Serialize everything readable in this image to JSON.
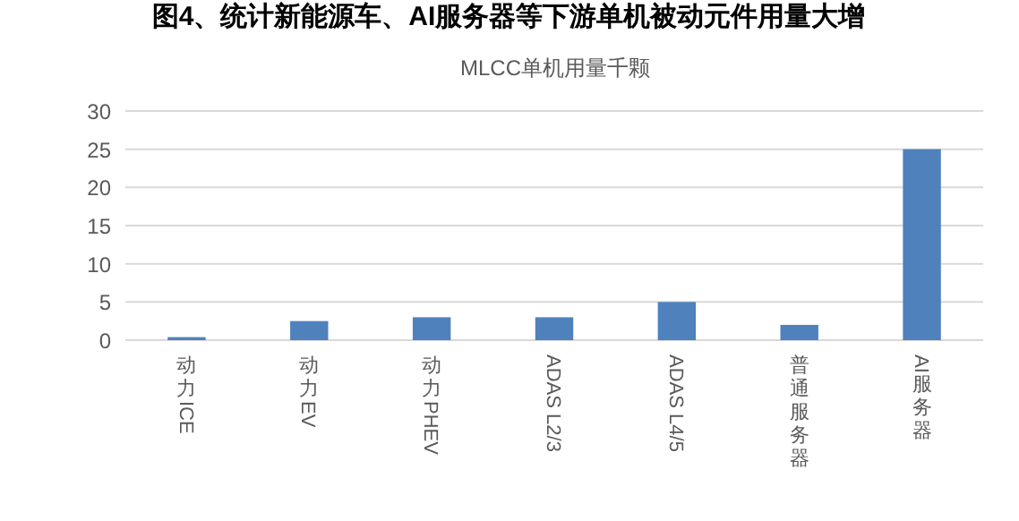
{
  "chart_data": {
    "type": "bar",
    "title": "图4、统计新能源车、AI服务器等下游单机被动元件用量大增",
    "subtitle": "MLCC单机用量千颗",
    "categories": [
      "动力ICE",
      "动力EV",
      "动力PHEV",
      "ADAS L2/3",
      "ADAS L4/5",
      "普通服务器",
      "AI服务器"
    ],
    "values": [
      0.4,
      2.5,
      3,
      3,
      5,
      2,
      25
    ],
    "color": "#4f81bd",
    "ylim": [
      0,
      30
    ],
    "yticks": [
      0,
      5,
      10,
      15,
      20,
      25,
      30
    ],
    "grid": "y"
  }
}
